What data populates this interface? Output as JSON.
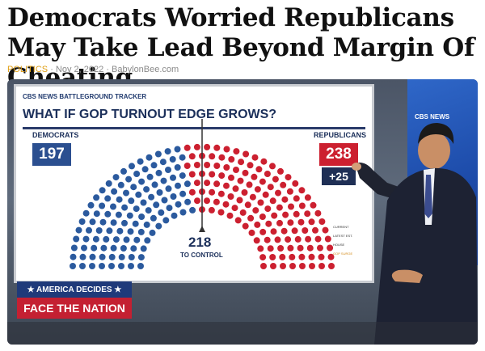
{
  "article": {
    "headline": "Democrats Worried Republicans May Take Lead Beyond Margin Of Cheating",
    "category": "POLITICS",
    "date": "Nov 2, 2022",
    "source": "BabylonBee.com",
    "category_color": "#e0a018"
  },
  "broadcast": {
    "side_network": "CBS NEWS",
    "board": {
      "tracker_label": "CBS NEWS BATTLEGROUND TRACKER",
      "question": "WHAT IF GOP TURNOUT EDGE GROWS?",
      "democrats_label": "DEMOCRATS",
      "democrats_seats": "197",
      "republicans_label": "REPUBLICANS",
      "republicans_seats": "238",
      "gain": "+25",
      "control_number": "218",
      "control_text": "TO CONTROL",
      "legend_items": [
        "CURRENT",
        "LATEST EST.",
        "HOUSE",
        "GOP SURGE"
      ],
      "dem_color": "#2b5a9e",
      "rep_color": "#cc2030",
      "seat_split": {
        "democrats": 197,
        "republicans": 238
      }
    },
    "lower_third": {
      "banner": "★ AMERICA DECIDES ★",
      "show": "FACE THE NATION"
    }
  }
}
